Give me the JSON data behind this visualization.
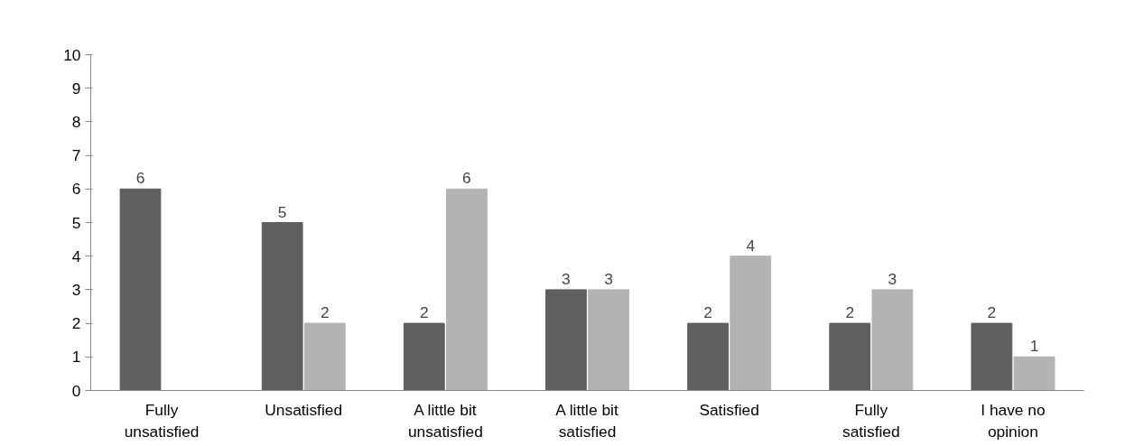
{
  "chart_data": {
    "type": "bar",
    "categories": [
      "Fully unsatisfied",
      "Unsatisfied",
      "A little bit unsatisfied",
      "A little bit satisfied",
      "Satisfied",
      "Fully satisfied",
      "I have no opinion"
    ],
    "series": [
      {
        "color": "#5f5f5f",
        "values": [
          6,
          5,
          2,
          3,
          2,
          2,
          2
        ]
      },
      {
        "color": "#b3b3b3",
        "values": [
          null,
          2,
          6,
          3,
          4,
          3,
          1
        ]
      }
    ],
    "ylim": [
      0,
      10
    ],
    "yticks": [
      0,
      1,
      2,
      3,
      4,
      5,
      6,
      7,
      8,
      9,
      10
    ],
    "grid": false,
    "data_labels": true
  }
}
